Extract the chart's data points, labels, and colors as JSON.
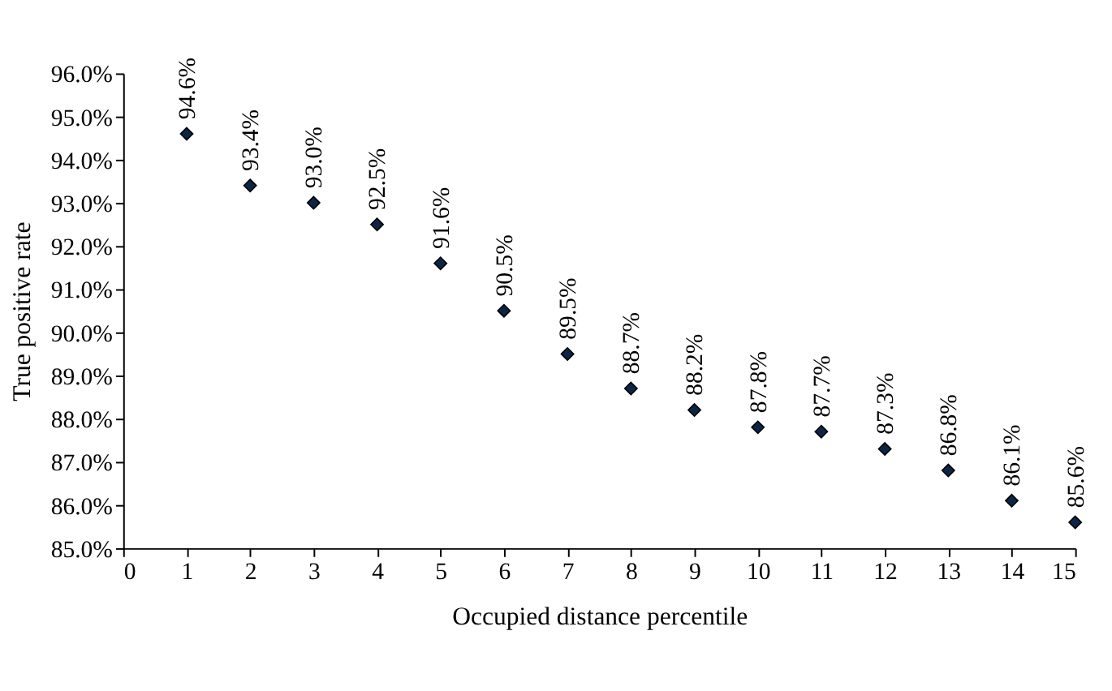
{
  "chart_data": {
    "type": "scatter",
    "xlabel": "Occupied distance percentile",
    "ylabel": "True positive rate",
    "x": [
      1,
      2,
      3,
      4,
      5,
      6,
      7,
      8,
      9,
      10,
      11,
      12,
      13,
      14,
      15
    ],
    "series": [
      {
        "color": "#0d2545",
        "values": [
          94.6,
          93.4,
          93.0,
          92.5,
          91.6,
          90.5,
          89.5,
          88.7,
          88.2,
          87.8,
          87.7,
          87.3,
          86.8,
          86.1,
          85.6
        ],
        "value_labels": [
          "94.6%",
          "93.4%",
          "93.0%",
          "92.5%",
          "91.6%",
          "90.5%",
          "89.5%",
          "88.7%",
          "88.2%",
          "87.8%",
          "87.7%",
          "87.3%",
          "86.8%",
          "86.1%",
          "85.6%"
        ]
      }
    ],
    "xlim": [
      0,
      15
    ],
    "xticks": [
      0,
      1,
      2,
      3,
      4,
      5,
      6,
      7,
      8,
      9,
      10,
      11,
      12,
      13,
      14,
      15
    ],
    "ylim": [
      85,
      96
    ],
    "yticks": [
      {
        "value": 85,
        "label": "85.0%"
      },
      {
        "value": 86,
        "label": "86.0%"
      },
      {
        "value": 87,
        "label": "87.0%"
      },
      {
        "value": 88,
        "label": "88.0%"
      },
      {
        "value": 89,
        "label": "89.0%"
      },
      {
        "value": 90,
        "label": "90.0%"
      },
      {
        "value": 91,
        "label": "91.0%"
      },
      {
        "value": 92,
        "label": "92.0%"
      },
      {
        "value": 93,
        "label": "93.0%"
      },
      {
        "value": 94,
        "label": "94.0%"
      },
      {
        "value": 95,
        "label": "95.0%"
      },
      {
        "value": 96,
        "label": "96.0%"
      }
    ],
    "marker": "diamond",
    "grid": false
  }
}
